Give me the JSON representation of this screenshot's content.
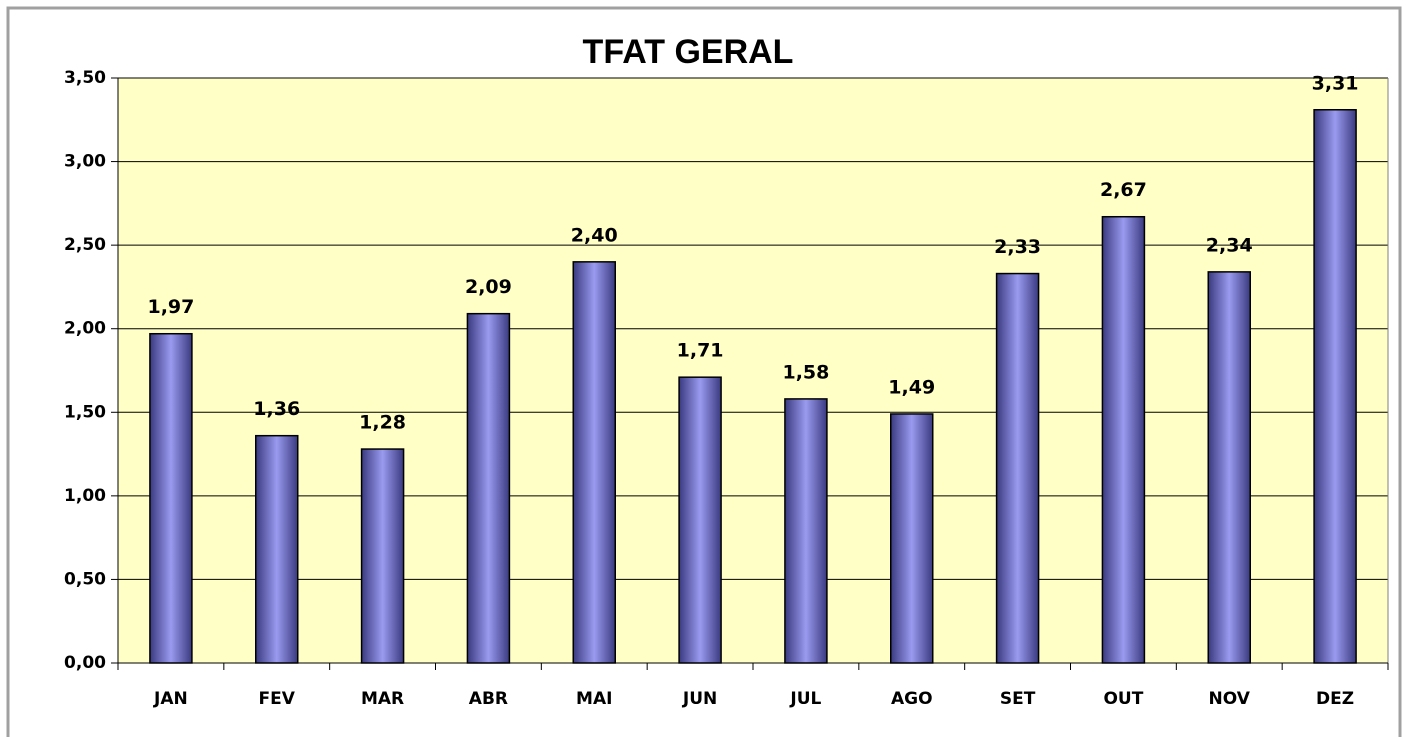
{
  "chart_data": {
    "type": "bar",
    "title": "TFAT GERAL",
    "categories": [
      "JAN",
      "FEV",
      "MAR",
      "ABR",
      "MAI",
      "JUN",
      "JUL",
      "AGO",
      "SET",
      "OUT",
      "NOV",
      "DEZ"
    ],
    "values": [
      1.97,
      1.36,
      1.28,
      2.09,
      2.4,
      1.71,
      1.58,
      1.49,
      2.33,
      2.67,
      2.34,
      3.31
    ],
    "value_labels": [
      "1,97",
      "1,36",
      "1,28",
      "2,09",
      "2,40",
      "1,71",
      "1,58",
      "1,49",
      "2,33",
      "2,67",
      "2,34",
      "3,31"
    ],
    "color": "#9a9af0",
    "ylim": [
      0,
      3.5
    ],
    "yticks": [
      {
        "value": 0,
        "label": "0,00"
      },
      {
        "value": 0.5,
        "label": "0,50"
      },
      {
        "value": 1,
        "label": "1,00"
      },
      {
        "value": 1.5,
        "label": "1,50"
      },
      {
        "value": 2,
        "label": "2,00"
      },
      {
        "value": 2.5,
        "label": "2,50"
      },
      {
        "value": 3,
        "label": "3,00"
      },
      {
        "value": 3.5,
        "label": "3,50"
      }
    ],
    "grid": true
  }
}
